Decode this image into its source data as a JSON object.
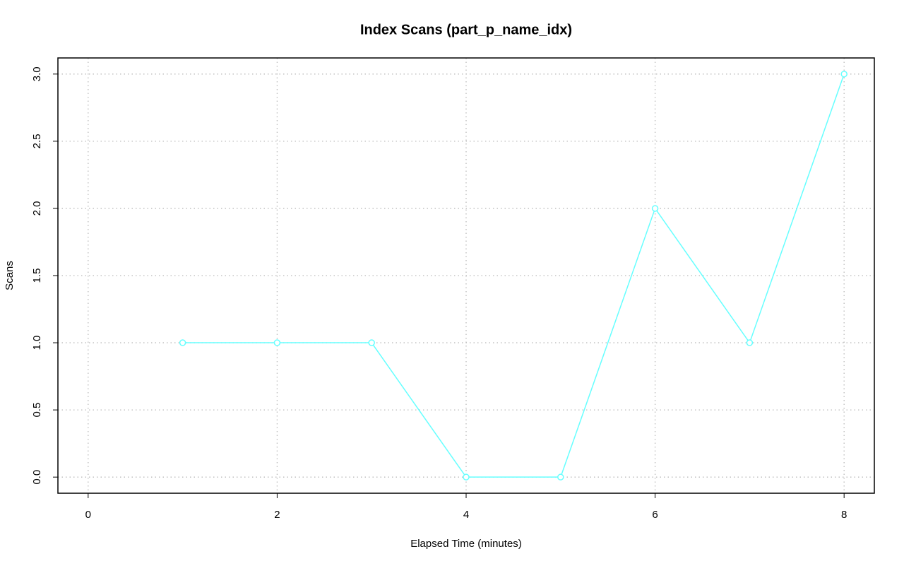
{
  "chart_data": {
    "type": "line",
    "title": "Index Scans (part_p_name_idx)",
    "x_label": "Elapsed Time (minutes)",
    "y_label": "Scans",
    "x": [
      1,
      2,
      3,
      4,
      5,
      6,
      7,
      8
    ],
    "series": [
      {
        "color": "#66ffff",
        "values": [
          1,
          1,
          1,
          0,
          0,
          2,
          1,
          3
        ]
      }
    ],
    "xlim": [
      -0.32,
      8.32
    ],
    "xticks": [
      0,
      2,
      4,
      6,
      8
    ],
    "ylim": [
      -0.12,
      3.12
    ],
    "yticks": [
      {
        "value": 0,
        "label": "0.0"
      },
      0.5,
      {
        "value": 1,
        "label": "1.0"
      },
      1.5,
      {
        "value": 2,
        "label": "2.0"
      },
      2.5,
      {
        "value": 3,
        "label": "3.0"
      }
    ],
    "grid": true
  }
}
